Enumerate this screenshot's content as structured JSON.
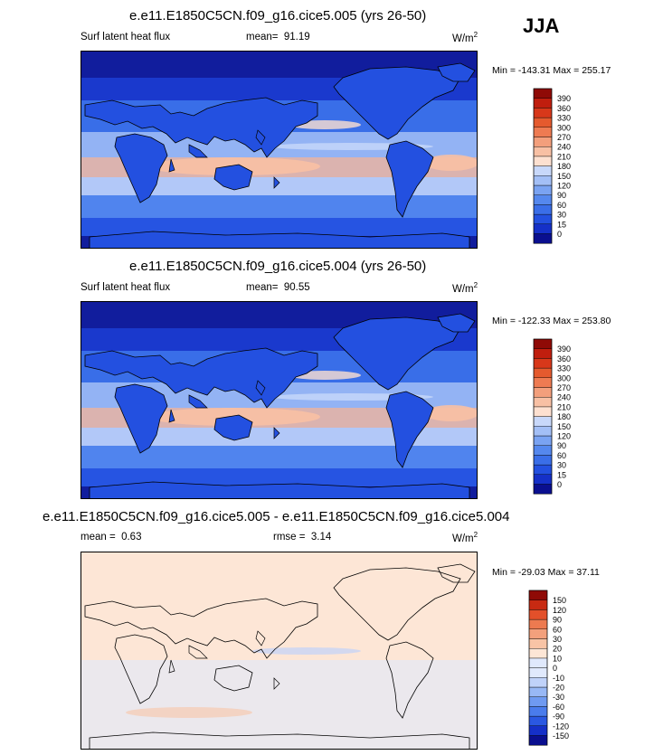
{
  "season": "JJA",
  "panels": [
    {
      "title": "e.e11.E1850C5CN.f09_g16.cice5.005 (yrs 26-50)",
      "variable": "Surf latent heat flux",
      "stat_label": "mean=",
      "stat_value": "91.19",
      "unit": "W/m",
      "unit_exp": "2",
      "minmax": "Min = -143.31 Max = 255.17",
      "kind": "field"
    },
    {
      "title": "e.e11.E1850C5CN.f09_g16.cice5.004 (yrs 26-50)",
      "variable": "Surf latent heat flux",
      "stat_label": "mean=",
      "stat_value": "90.55",
      "unit": "W/m",
      "unit_exp": "2",
      "minmax": "Min = -122.33 Max = 253.80",
      "kind": "field"
    },
    {
      "title": "e.e11.E1850C5CN.f09_g16.cice5.005 - e.e11.E1850C5CN.f09_g16.cice5.004",
      "mean_label": "mean =",
      "mean_value": "0.63",
      "rmse_label": "rmse =",
      "rmse_value": "3.14",
      "unit": "W/m",
      "unit_exp": "2",
      "minmax": "Min = -29.03 Max =  37.11",
      "kind": "diff"
    }
  ],
  "colors": {
    "field_scale": [
      "#0a0f8f",
      "#1530c8",
      "#2350e0",
      "#3a6ee8",
      "#5588ee",
      "#7aa3f2",
      "#a3bff6",
      "#c8d8fa",
      "#e6eefc",
      "#fde0d0",
      "#f8c0a4",
      "#f39f7c",
      "#ee7b52",
      "#e55a2e",
      "#d8381a",
      "#c01e0e",
      "#8f0a06"
    ],
    "diff_scale": [
      "#0a0f8f",
      "#1530c8",
      "#2a58e2",
      "#4a7cec",
      "#6f9af1",
      "#98b8f5",
      "#c0d2f9",
      "#e0e9fc",
      "#fde6d6",
      "#f8c4a6",
      "#f3a07c",
      "#ed7a50",
      "#e3502a",
      "#c82a12",
      "#8f0a06"
    ]
  },
  "chart_data": [
    {
      "type": "heatmap",
      "title": "e.e11.E1850C5CN.f09_g16.cice5.005 (yrs 26-50)",
      "variable": "Surf latent heat flux",
      "mean": 91.19,
      "min": -143.31,
      "max": 255.17,
      "colorbar_levels": [
        0,
        15,
        30,
        60,
        90,
        120,
        150,
        180,
        210,
        240,
        270,
        300,
        330,
        360,
        390
      ]
    },
    {
      "type": "heatmap",
      "title": "e.e11.E1850C5CN.f09_g16.cice5.004 (yrs 26-50)",
      "variable": "Surf latent heat flux",
      "mean": 90.55,
      "min": -122.33,
      "max": 253.8,
      "colorbar_levels": [
        0,
        15,
        30,
        60,
        90,
        120,
        150,
        180,
        210,
        240,
        270,
        300,
        330,
        360,
        390
      ]
    },
    {
      "type": "heatmap",
      "title": "e.e11.E1850C5CN.f09_g16.cice5.005 - e.e11.E1850C5CN.f09_g16.cice5.004",
      "mean": 0.63,
      "rmse": 3.14,
      "min": -29.03,
      "max": 37.11,
      "colorbar_levels": [
        -150,
        -120,
        -90,
        -60,
        -30,
        -20,
        -10,
        0,
        10,
        20,
        30,
        60,
        90,
        120,
        150
      ]
    }
  ]
}
